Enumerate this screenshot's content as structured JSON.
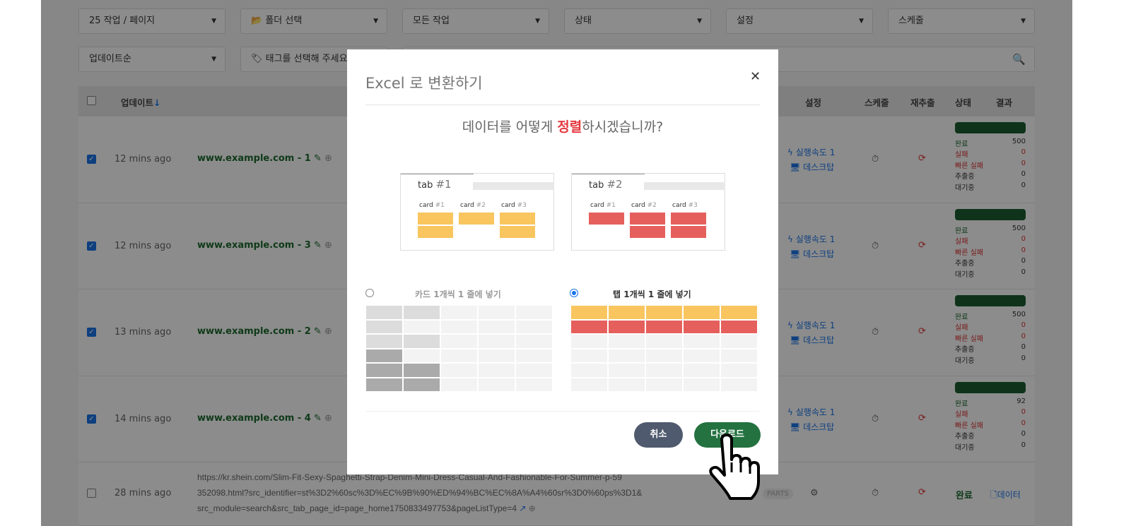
{
  "filters": {
    "row1": [
      "25 작업 / 페이지",
      "폴더 선택",
      "모든 작업",
      "상태",
      "설정",
      "스케줄"
    ],
    "sort": "업데이트순",
    "tags": "태그를 선택해 주세요"
  },
  "table": {
    "headers": {
      "update": "업데이트",
      "settings": "설정",
      "schedule": "스케줄",
      "reextract": "재추출",
      "status": "상태",
      "result": "결과"
    },
    "stat_labels": [
      "완료",
      "실패",
      "빠른 실패",
      "추출중",
      "대기중"
    ],
    "speed": "실행속도  1",
    "device": "데스크탑",
    "rows": [
      {
        "checked": true,
        "time": "12 mins ago",
        "title": "www.example.com - 1",
        "stats": [
          500,
          0,
          0,
          0,
          0
        ]
      },
      {
        "checked": true,
        "time": "12 mins ago",
        "title": "www.example.com - 3",
        "stats": [
          500,
          0,
          0,
          0,
          0
        ]
      },
      {
        "checked": true,
        "time": "13 mins ago",
        "title": "www.example.com - 2",
        "stats": [
          500,
          0,
          0,
          0,
          0
        ]
      },
      {
        "checked": true,
        "time": "14 mins ago",
        "title": "www.example.com - 4",
        "stats": [
          92,
          0,
          0,
          0,
          0
        ]
      }
    ],
    "last_row": {
      "checked": false,
      "time": "28 mins ago",
      "url": [
        "https://kr.shein.com/Slim-Fit-Sexy-Spaghetti-Strap-Denim-Mini-Dress-Casual-And-Fashionable-For-Summer-p-59",
        "352098.html?src_identifier=st%3D2%60sc%3D%EC%9B%90%ED%94%BC%EC%8A%A4%60sr%3D0%60ps%3D1&",
        "src_module=search&src_tab_page_id=page_home1750833497753&pageListType=4"
      ],
      "badge": "PARTS",
      "status": "완료",
      "result": "데이터"
    }
  },
  "modal": {
    "title": "Excel 로 변환하기",
    "q_pre": "데이터를 어떻게 ",
    "q_em": "정렬",
    "q_post": "하시겠습니까?",
    "tab1": "tab",
    "tab1n": "#1",
    "tab2": "tab",
    "tab2n": "#2",
    "card": "card",
    "cards": [
      "#1",
      "#2",
      "#3"
    ],
    "opt_card": "카드 1개씩 1 줄에 넣기",
    "opt_tab": "탭 1개씩 1 줄에 넣기",
    "selected": "tab",
    "cancel": "취소",
    "download": "다운로드"
  },
  "colors": {
    "yellow": "#f8c55f",
    "red": "#e5605c",
    "green": "#237240",
    "cancel": "#4f5a6e"
  }
}
